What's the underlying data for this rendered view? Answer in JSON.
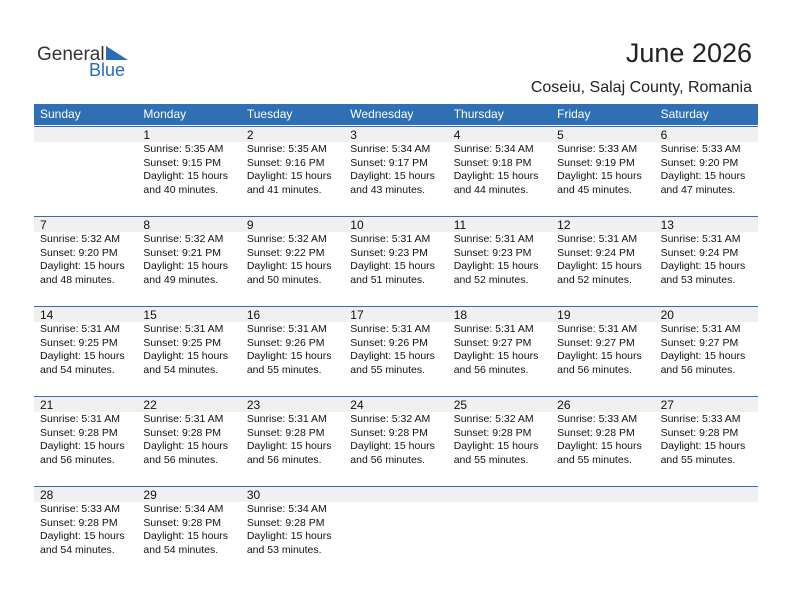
{
  "logo": {
    "general": "General",
    "blue": "Blue"
  },
  "header": {
    "title": "June 2026",
    "location": "Coseiu, Salaj County, Romania"
  },
  "weekdays": [
    "Sunday",
    "Monday",
    "Tuesday",
    "Wednesday",
    "Thursday",
    "Friday",
    "Saturday"
  ],
  "weeks": [
    [
      null,
      {
        "day": 1,
        "sunrise": "Sunrise: 5:35 AM",
        "sunset": "Sunset: 9:15 PM",
        "daylight": "Daylight: 15 hours",
        "minutes": "and 40 minutes."
      },
      {
        "day": 2,
        "sunrise": "Sunrise: 5:35 AM",
        "sunset": "Sunset: 9:16 PM",
        "daylight": "Daylight: 15 hours",
        "minutes": "and 41 minutes."
      },
      {
        "day": 3,
        "sunrise": "Sunrise: 5:34 AM",
        "sunset": "Sunset: 9:17 PM",
        "daylight": "Daylight: 15 hours",
        "minutes": "and 43 minutes."
      },
      {
        "day": 4,
        "sunrise": "Sunrise: 5:34 AM",
        "sunset": "Sunset: 9:18 PM",
        "daylight": "Daylight: 15 hours",
        "minutes": "and 44 minutes."
      },
      {
        "day": 5,
        "sunrise": "Sunrise: 5:33 AM",
        "sunset": "Sunset: 9:19 PM",
        "daylight": "Daylight: 15 hours",
        "minutes": "and 45 minutes."
      },
      {
        "day": 6,
        "sunrise": "Sunrise: 5:33 AM",
        "sunset": "Sunset: 9:20 PM",
        "daylight": "Daylight: 15 hours",
        "minutes": "and 47 minutes."
      }
    ],
    [
      {
        "day": 7,
        "sunrise": "Sunrise: 5:32 AM",
        "sunset": "Sunset: 9:20 PM",
        "daylight": "Daylight: 15 hours",
        "minutes": "and 48 minutes."
      },
      {
        "day": 8,
        "sunrise": "Sunrise: 5:32 AM",
        "sunset": "Sunset: 9:21 PM",
        "daylight": "Daylight: 15 hours",
        "minutes": "and 49 minutes."
      },
      {
        "day": 9,
        "sunrise": "Sunrise: 5:32 AM",
        "sunset": "Sunset: 9:22 PM",
        "daylight": "Daylight: 15 hours",
        "minutes": "and 50 minutes."
      },
      {
        "day": 10,
        "sunrise": "Sunrise: 5:31 AM",
        "sunset": "Sunset: 9:23 PM",
        "daylight": "Daylight: 15 hours",
        "minutes": "and 51 minutes."
      },
      {
        "day": 11,
        "sunrise": "Sunrise: 5:31 AM",
        "sunset": "Sunset: 9:23 PM",
        "daylight": "Daylight: 15 hours",
        "minutes": "and 52 minutes."
      },
      {
        "day": 12,
        "sunrise": "Sunrise: 5:31 AM",
        "sunset": "Sunset: 9:24 PM",
        "daylight": "Daylight: 15 hours",
        "minutes": "and 52 minutes."
      },
      {
        "day": 13,
        "sunrise": "Sunrise: 5:31 AM",
        "sunset": "Sunset: 9:24 PM",
        "daylight": "Daylight: 15 hours",
        "minutes": "and 53 minutes."
      }
    ],
    [
      {
        "day": 14,
        "sunrise": "Sunrise: 5:31 AM",
        "sunset": "Sunset: 9:25 PM",
        "daylight": "Daylight: 15 hours",
        "minutes": "and 54 minutes."
      },
      {
        "day": 15,
        "sunrise": "Sunrise: 5:31 AM",
        "sunset": "Sunset: 9:25 PM",
        "daylight": "Daylight: 15 hours",
        "minutes": "and 54 minutes."
      },
      {
        "day": 16,
        "sunrise": "Sunrise: 5:31 AM",
        "sunset": "Sunset: 9:26 PM",
        "daylight": "Daylight: 15 hours",
        "minutes": "and 55 minutes."
      },
      {
        "day": 17,
        "sunrise": "Sunrise: 5:31 AM",
        "sunset": "Sunset: 9:26 PM",
        "daylight": "Daylight: 15 hours",
        "minutes": "and 55 minutes."
      },
      {
        "day": 18,
        "sunrise": "Sunrise: 5:31 AM",
        "sunset": "Sunset: 9:27 PM",
        "daylight": "Daylight: 15 hours",
        "minutes": "and 56 minutes."
      },
      {
        "day": 19,
        "sunrise": "Sunrise: 5:31 AM",
        "sunset": "Sunset: 9:27 PM",
        "daylight": "Daylight: 15 hours",
        "minutes": "and 56 minutes."
      },
      {
        "day": 20,
        "sunrise": "Sunrise: 5:31 AM",
        "sunset": "Sunset: 9:27 PM",
        "daylight": "Daylight: 15 hours",
        "minutes": "and 56 minutes."
      }
    ],
    [
      {
        "day": 21,
        "sunrise": "Sunrise: 5:31 AM",
        "sunset": "Sunset: 9:28 PM",
        "daylight": "Daylight: 15 hours",
        "minutes": "and 56 minutes."
      },
      {
        "day": 22,
        "sunrise": "Sunrise: 5:31 AM",
        "sunset": "Sunset: 9:28 PM",
        "daylight": "Daylight: 15 hours",
        "minutes": "and 56 minutes."
      },
      {
        "day": 23,
        "sunrise": "Sunrise: 5:31 AM",
        "sunset": "Sunset: 9:28 PM",
        "daylight": "Daylight: 15 hours",
        "minutes": "and 56 minutes."
      },
      {
        "day": 24,
        "sunrise": "Sunrise: 5:32 AM",
        "sunset": "Sunset: 9:28 PM",
        "daylight": "Daylight: 15 hours",
        "minutes": "and 56 minutes."
      },
      {
        "day": 25,
        "sunrise": "Sunrise: 5:32 AM",
        "sunset": "Sunset: 9:28 PM",
        "daylight": "Daylight: 15 hours",
        "minutes": "and 55 minutes."
      },
      {
        "day": 26,
        "sunrise": "Sunrise: 5:33 AM",
        "sunset": "Sunset: 9:28 PM",
        "daylight": "Daylight: 15 hours",
        "minutes": "and 55 minutes."
      },
      {
        "day": 27,
        "sunrise": "Sunrise: 5:33 AM",
        "sunset": "Sunset: 9:28 PM",
        "daylight": "Daylight: 15 hours",
        "minutes": "and 55 minutes."
      }
    ],
    [
      {
        "day": 28,
        "sunrise": "Sunrise: 5:33 AM",
        "sunset": "Sunset: 9:28 PM",
        "daylight": "Daylight: 15 hours",
        "minutes": "and 54 minutes."
      },
      {
        "day": 29,
        "sunrise": "Sunrise: 5:34 AM",
        "sunset": "Sunset: 9:28 PM",
        "daylight": "Daylight: 15 hours",
        "minutes": "and 54 minutes."
      },
      {
        "day": 30,
        "sunrise": "Sunrise: 5:34 AM",
        "sunset": "Sunset: 9:28 PM",
        "daylight": "Daylight: 15 hours",
        "minutes": "and 53 minutes."
      }
    ]
  ]
}
